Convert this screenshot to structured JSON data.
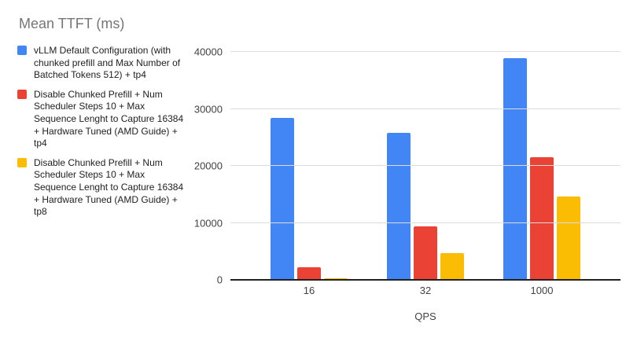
{
  "title": "Mean TTFT (ms)",
  "chart_data": {
    "type": "bar",
    "title": "Mean TTFT (ms)",
    "categories": [
      "16",
      "32",
      "1000"
    ],
    "series": [
      {
        "name": "vLLM Default Configuration (with chunked prefill and Max Number of Batched Tokens 512) + tp4",
        "color": "#4285F4",
        "values": [
          28400,
          25800,
          38900
        ]
      },
      {
        "name": "Disable Chunked Prefill + Num Scheduler Steps 10 + Max Sequence Lenght to Capture 16384 + Hardware Tuned (AMD Guide) + tp4",
        "color": "#EA4335",
        "values": [
          2250,
          9350,
          21500
        ]
      },
      {
        "name": "Disable Chunked Prefill + Num Scheduler Steps 10 + Max Sequence Lenght to Capture 16384 + Hardware Tuned (AMD Guide) + tp8",
        "color": "#FBBC04",
        "values": [
          250,
          4700,
          14600
        ]
      }
    ],
    "xlabel": "QPS",
    "ylabel": "",
    "ylim": [
      0,
      40000
    ],
    "yticks": [
      0,
      10000,
      20000,
      30000,
      40000
    ],
    "grid": true,
    "legend_position": "left"
  },
  "colors": {
    "title_text": "#757575",
    "legend_text": "#212121",
    "axis_text": "#424242",
    "gridline": "#dadce0",
    "axis_line": "#212121",
    "background": "#ffffff"
  }
}
